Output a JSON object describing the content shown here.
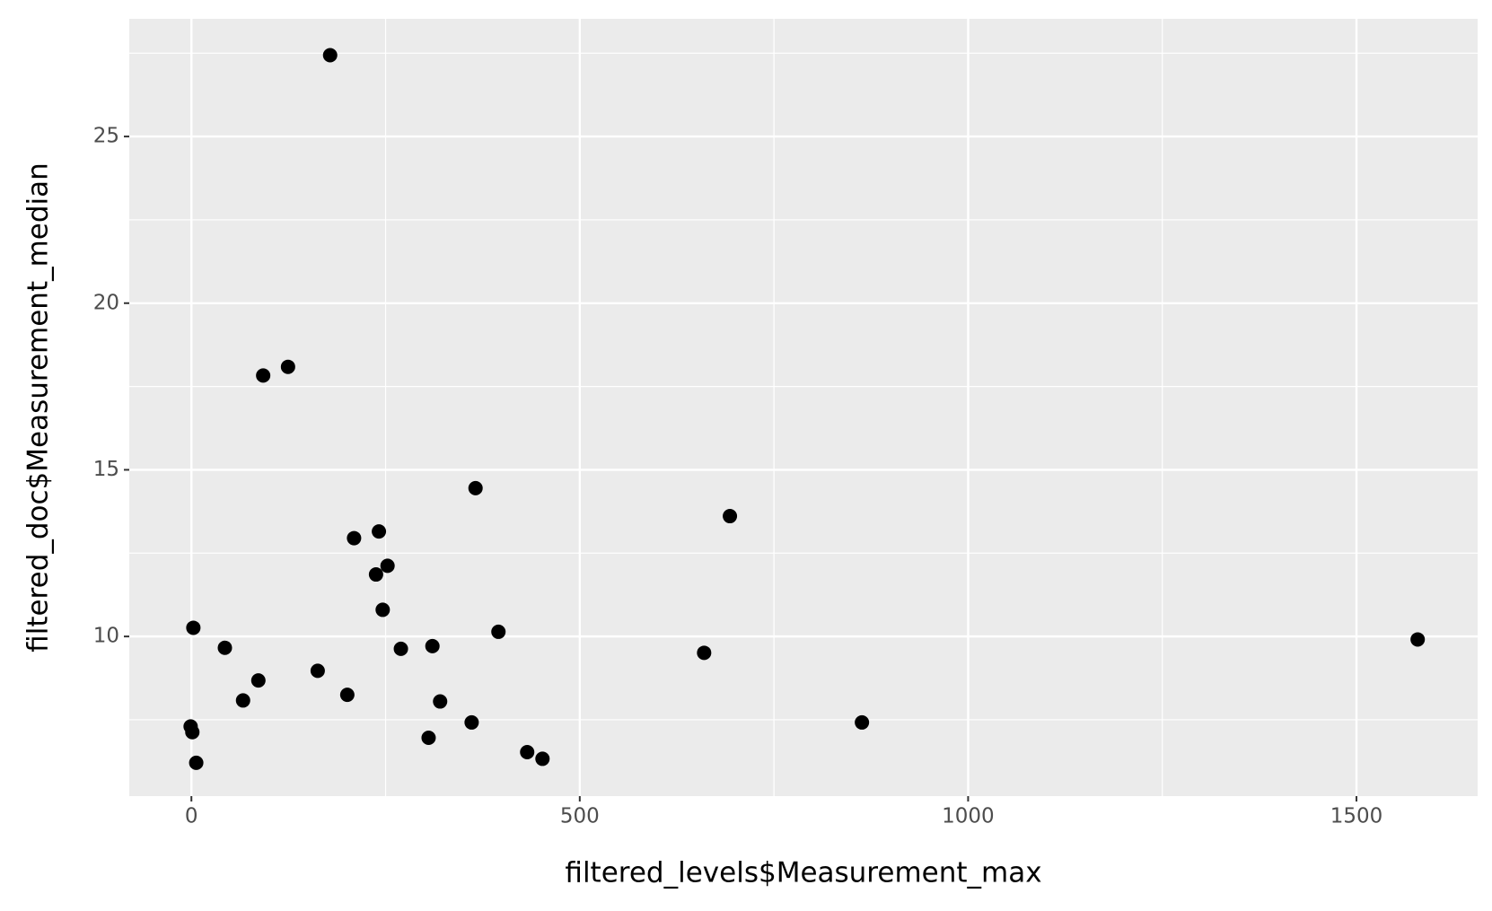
{
  "chart_data": {
    "type": "scatter",
    "x_label": "filtered_levels$Measurement_max",
    "y_label": "filtered_doc$Measurement_median",
    "color": "#000000",
    "x": [
      178.6,
      92.4,
      124.4,
      365.8,
      693.3,
      209.4,
      241.4,
      237.7,
      252.5,
      246.3,
      2.5,
      43.1,
      269.7,
      310.3,
      395.3,
      660.1,
      1578.8,
      162.6,
      86.2,
      200.7,
      66.5,
      320.2,
      -1,
      1.2,
      360.8,
      305.4,
      6.2,
      432.3,
      452.0,
      863.3
    ],
    "values": [
      27.44,
      17.83,
      18.09,
      14.45,
      13.61,
      12.95,
      13.15,
      11.86,
      12.12,
      10.8,
      10.26,
      9.66,
      9.63,
      9.71,
      10.14,
      9.51,
      9.91,
      8.97,
      8.68,
      8.25,
      8.08,
      8.05,
      7.3,
      7.13,
      7.42,
      6.96,
      6.21,
      6.53,
      6.33,
      7.42
    ],
    "xlim": [
      -80,
      1656
    ],
    "ylim": [
      5.21,
      28.53
    ],
    "xticks": [
      0,
      500,
      1000,
      1500
    ],
    "yticks": [
      10,
      15,
      20,
      25
    ],
    "xminor": [
      250,
      750,
      1250
    ],
    "yminor": [
      7.5,
      12.5,
      17.5,
      22.5,
      27.5
    ],
    "grid": true
  }
}
